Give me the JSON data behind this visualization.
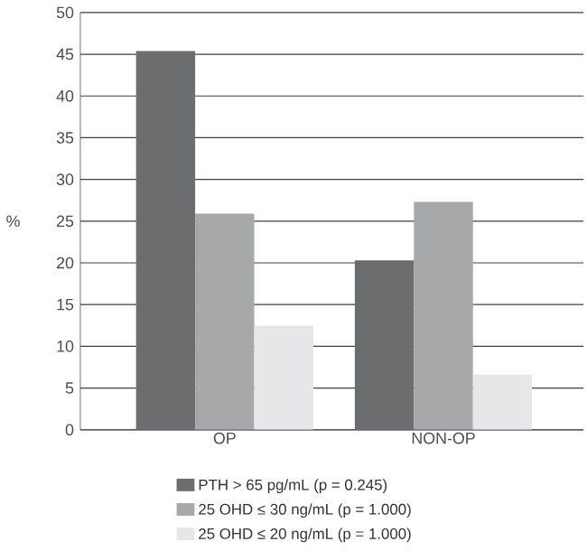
{
  "chart_data": {
    "type": "bar",
    "ylabel": "%",
    "categories": [
      "OP",
      "NON-OP"
    ],
    "series": [
      {
        "name": "PTH > 65 pg/mL (p = 0.245)",
        "color": "#6b6d6e",
        "values": [
          45.4,
          20.3
        ]
      },
      {
        "name": "25 OHD ≤ 30 ng/mL (p = 1.000)",
        "color": "#a7a8aa",
        "values": [
          25.9,
          27.3
        ]
      },
      {
        "name": "25 OHD ≤ 20 ng/mL (p = 1.000)",
        "color": "#e6e7e8",
        "values": [
          12.5,
          6.6
        ]
      }
    ],
    "ylim": [
      0,
      50
    ],
    "yticks": [
      0,
      5,
      10,
      15,
      20,
      25,
      30,
      35,
      40,
      45,
      50
    ],
    "grid": "y",
    "legend": "bottom"
  }
}
